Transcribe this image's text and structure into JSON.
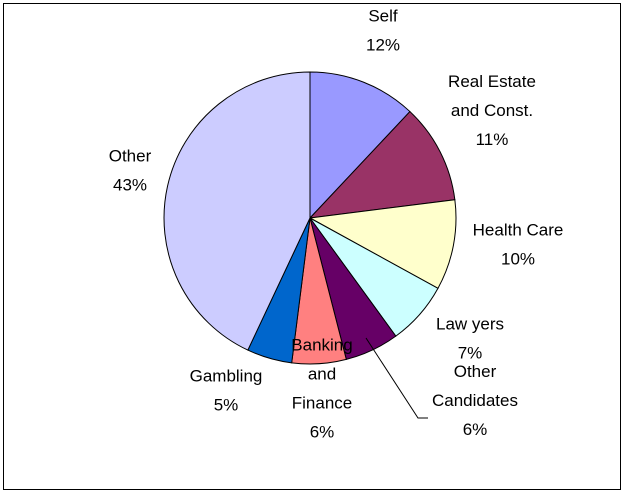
{
  "chart_data": {
    "type": "pie",
    "title": "",
    "start_angle_deg": 0,
    "direction": "clockwise",
    "slices": [
      {
        "name_lines": [
          "Self"
        ],
        "value": 12,
        "value_label": "12%",
        "color": "#9999FF"
      },
      {
        "name_lines": [
          "Real Estate",
          "and Const."
        ],
        "value": 11,
        "value_label": "11%",
        "color": "#993366"
      },
      {
        "name_lines": [
          "Health Care"
        ],
        "value": 10,
        "value_label": "10%",
        "color": "#FFFFCC"
      },
      {
        "name_lines": [
          "Law yers"
        ],
        "value": 7,
        "value_label": "7%",
        "color": "#CCFFFF"
      },
      {
        "name_lines": [
          "Other",
          "Candidates"
        ],
        "value": 6,
        "value_label": "6%",
        "color": "#660066"
      },
      {
        "name_lines": [
          "Banking",
          "and",
          "Finance"
        ],
        "value": 6,
        "value_label": "6%",
        "color": "#FF8080"
      },
      {
        "name_lines": [
          "Gambling"
        ],
        "value": 5,
        "value_label": "5%",
        "color": "#0066CC"
      },
      {
        "name_lines": [
          "Other"
        ],
        "value": 43,
        "value_label": "43%",
        "color": "#CCCCFF"
      }
    ],
    "legend": "none"
  }
}
